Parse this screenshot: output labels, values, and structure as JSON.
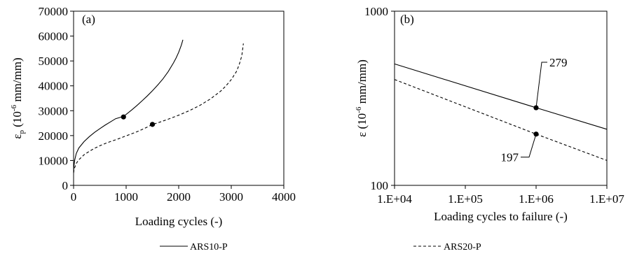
{
  "chart_data": [
    {
      "panel_label": "(a)",
      "type": "line",
      "xlabel": "Loading cycles (-)",
      "ylabel_main": "ε",
      "ylabel_sub": "p",
      "ylabel_open": " (10",
      "ylabel_sup": "-6",
      "ylabel_unit": " mm/mm)",
      "xlim": [
        0,
        4000
      ],
      "ylim": [
        0,
        70000
      ],
      "xticks": [
        0,
        1000,
        2000,
        3000,
        4000
      ],
      "yticks": [
        0,
        10000,
        20000,
        30000,
        40000,
        50000,
        60000,
        70000
      ],
      "grid": false,
      "series": [
        {
          "name": "ARS10-P",
          "style": "solid",
          "x": [
            0,
            5,
            20,
            50,
            100,
            200,
            300,
            400,
            500,
            600,
            700,
            800,
            900,
            950,
            1000,
            1100,
            1200,
            1300,
            1400,
            1500,
            1600,
            1700,
            1800,
            1900,
            1950,
            2000,
            2050,
            2080
          ],
          "y": [
            5000,
            7500,
            10000,
            12800,
            15000,
            17600,
            19600,
            21300,
            22800,
            24200,
            25500,
            26800,
            27400,
            27800,
            28500,
            30200,
            32000,
            33900,
            35900,
            38000,
            40300,
            42800,
            45700,
            49200,
            51200,
            53500,
            56400,
            58500
          ],
          "marker": {
            "x": 950,
            "y": 27500
          }
        },
        {
          "name": "ARS20-P",
          "style": "dashed",
          "x": [
            0,
            10,
            50,
            100,
            200,
            300,
            400,
            500,
            600,
            700,
            800,
            900,
            1000,
            1100,
            1200,
            1300,
            1400,
            1500,
            1600,
            1800,
            2000,
            2200,
            2400,
            2600,
            2800,
            2900,
            3000,
            3100,
            3150,
            3200,
            3230
          ],
          "y": [
            5000,
            6500,
            8800,
            10300,
            12300,
            13700,
            14900,
            15900,
            16800,
            17600,
            18300,
            19100,
            19900,
            20700,
            21500,
            22400,
            23400,
            24500,
            25100,
            26600,
            28200,
            30000,
            32100,
            34700,
            37900,
            40000,
            42500,
            45800,
            48500,
            52000,
            57000
          ],
          "marker": {
            "x": 1500,
            "y": 24500
          }
        }
      ]
    },
    {
      "panel_label": "(b)",
      "type": "line",
      "xscale": "log",
      "yscale": "log",
      "xlabel": "Loading cycles to failure  (-)",
      "ylabel_main": "ε",
      "ylabel_open": " (10",
      "ylabel_sup": "-6",
      "ylabel_unit": " mm/mm)",
      "xlim": [
        10000,
        10000000
      ],
      "ylim": [
        100,
        1000
      ],
      "xticks": [
        10000,
        100000,
        1000000,
        10000000
      ],
      "xtick_labels": [
        "1.E+04",
        "1.E+05",
        "1.E+06",
        "1.E+07"
      ],
      "yticks": [
        100,
        1000
      ],
      "ytick_labels": [
        "100",
        "1000"
      ],
      "grid": false,
      "series": [
        {
          "name": "ARS10-P",
          "style": "solid",
          "x": [
            10000,
            1000000,
            10000000
          ],
          "y": [
            498,
            279,
            210
          ],
          "marker": {
            "x": 1000000,
            "y": 279,
            "label": "279"
          }
        },
        {
          "name": "ARS20-P",
          "style": "dashed",
          "x": [
            10000,
            1000000,
            10000000
          ],
          "y": [
            405,
            197,
            139
          ],
          "marker": {
            "x": 1000000,
            "y": 197,
            "label": "197"
          }
        }
      ]
    }
  ],
  "legend": {
    "placement": "bottom",
    "items": [
      {
        "label": "ARS10-P",
        "style": "solid"
      },
      {
        "label": "ARS20-P",
        "style": "dashed"
      }
    ]
  }
}
